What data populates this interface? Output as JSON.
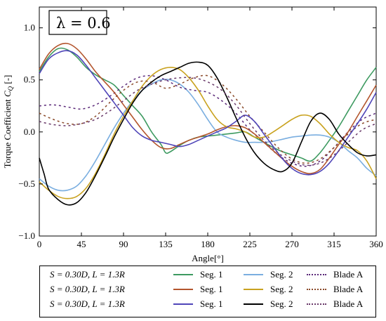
{
  "chart_data": {
    "type": "line",
    "annotation": "λ = 0.6",
    "xlabel": "Angle[°]",
    "ylabel": "Torque Coefficient C_Q [-]",
    "ylabel_parts": {
      "prefix": "Torque Coefficient ",
      "symbol": "C",
      "subscript": "Q",
      "suffix": " [-]"
    },
    "xlim": [
      0,
      360
    ],
    "ylim": [
      -1.0,
      1.2
    ],
    "xticks": [
      0,
      45,
      90,
      135,
      180,
      225,
      270,
      315,
      360
    ],
    "yticks": [
      -1.0,
      -0.5,
      0.0,
      0.5,
      1.0
    ],
    "ytick_labels": [
      "−1.0",
      "−0.5",
      "0.0",
      "0.5",
      "1.0"
    ],
    "grid": false,
    "legend_position": "bottom",
    "series": [
      {
        "name": "Seg. 1",
        "color": "#3d9a60",
        "dash": "solid",
        "x": [
          0,
          10,
          20,
          30,
          40,
          50,
          60,
          70,
          80,
          90,
          100,
          110,
          120,
          130,
          135,
          140,
          150,
          160,
          170,
          180,
          190,
          200,
          210,
          220,
          230,
          240,
          250,
          260,
          270,
          280,
          290,
          300,
          310,
          320,
          330,
          340,
          350,
          360
        ],
        "y": [
          0.58,
          0.72,
          0.8,
          0.79,
          0.72,
          0.62,
          0.55,
          0.5,
          0.45,
          0.35,
          0.25,
          0.15,
          0.0,
          -0.12,
          -0.2,
          -0.19,
          -0.13,
          -0.08,
          -0.05,
          -0.04,
          -0.03,
          -0.02,
          -0.01,
          0.0,
          -0.05,
          -0.1,
          -0.15,
          -0.19,
          -0.22,
          -0.25,
          -0.28,
          -0.2,
          -0.08,
          0.05,
          0.2,
          0.35,
          0.5,
          0.62
        ]
      },
      {
        "name": "Seg. 2",
        "color": "#7aaee0",
        "dash": "solid",
        "x": [
          0,
          10,
          20,
          30,
          40,
          50,
          60,
          70,
          80,
          90,
          100,
          110,
          120,
          130,
          140,
          150,
          160,
          170,
          180,
          190,
          200,
          210,
          220,
          230,
          240,
          250,
          260,
          270,
          280,
          290,
          300,
          310,
          320,
          330,
          340,
          350,
          360
        ],
        "y": [
          -0.45,
          -0.52,
          -0.56,
          -0.56,
          -0.52,
          -0.42,
          -0.28,
          -0.12,
          0.04,
          0.18,
          0.3,
          0.4,
          0.46,
          0.5,
          0.5,
          0.46,
          0.38,
          0.26,
          0.12,
          0.0,
          -0.05,
          -0.08,
          -0.1,
          -0.1,
          -0.1,
          -0.09,
          -0.07,
          -0.05,
          -0.04,
          -0.03,
          -0.03,
          -0.05,
          -0.1,
          -0.18,
          -0.25,
          -0.35,
          -0.42
        ]
      },
      {
        "name": "Blade A",
        "color": "#5c2a7a",
        "dash": "dotted",
        "x": [
          0,
          15,
          30,
          45,
          60,
          75,
          90,
          105,
          120,
          135,
          150,
          165,
          180,
          195,
          210,
          225,
          240,
          255,
          270,
          285,
          300,
          315,
          330,
          345,
          360
        ],
        "y": [
          0.25,
          0.26,
          0.24,
          0.22,
          0.26,
          0.34,
          0.44,
          0.52,
          0.54,
          0.5,
          0.43,
          0.4,
          0.38,
          0.3,
          0.18,
          0.02,
          -0.1,
          -0.22,
          -0.3,
          -0.33,
          -0.28,
          -0.15,
          0.0,
          0.12,
          0.18
        ]
      },
      {
        "name": "Seg. 1",
        "color": "#b3552d",
        "dash": "solid",
        "x": [
          0,
          10,
          20,
          30,
          40,
          50,
          60,
          70,
          80,
          90,
          100,
          110,
          120,
          130,
          140,
          150,
          160,
          170,
          180,
          190,
          200,
          210,
          220,
          230,
          240,
          250,
          260,
          270,
          280,
          290,
          300,
          310,
          320,
          330,
          340,
          350,
          360
        ],
        "y": [
          0.6,
          0.75,
          0.83,
          0.85,
          0.8,
          0.7,
          0.58,
          0.48,
          0.38,
          0.26,
          0.14,
          0.02,
          -0.08,
          -0.15,
          -0.16,
          -0.12,
          -0.08,
          -0.05,
          -0.02,
          0.02,
          0.05,
          0.06,
          0.04,
          -0.02,
          -0.1,
          -0.18,
          -0.26,
          -0.33,
          -0.38,
          -0.4,
          -0.36,
          -0.25,
          -0.12,
          0.0,
          0.15,
          0.3,
          0.45
        ]
      },
      {
        "name": "Seg. 2",
        "color": "#c9a21f",
        "dash": "solid",
        "x": [
          0,
          10,
          20,
          30,
          40,
          50,
          60,
          70,
          80,
          90,
          100,
          110,
          120,
          130,
          140,
          150,
          160,
          170,
          180,
          190,
          200,
          210,
          220,
          230,
          240,
          250,
          260,
          270,
          280,
          290,
          300,
          310,
          320,
          330,
          340,
          350,
          360
        ],
        "y": [
          -0.48,
          -0.56,
          -0.62,
          -0.64,
          -0.62,
          -0.54,
          -0.4,
          -0.22,
          -0.02,
          0.15,
          0.3,
          0.44,
          0.54,
          0.6,
          0.62,
          0.6,
          0.52,
          0.4,
          0.25,
          0.12,
          0.05,
          0.03,
          0.0,
          -0.05,
          -0.05,
          0.0,
          0.06,
          0.12,
          0.16,
          0.15,
          0.08,
          -0.02,
          -0.1,
          -0.15,
          -0.18,
          -0.28,
          -0.45
        ]
      },
      {
        "name": "Blade A",
        "color": "#8a4a2a",
        "dash": "dotted",
        "x": [
          0,
          15,
          30,
          45,
          60,
          75,
          90,
          105,
          120,
          135,
          150,
          165,
          180,
          195,
          210,
          225,
          240,
          255,
          270,
          285,
          300,
          315,
          330,
          345,
          360
        ],
        "y": [
          0.18,
          0.12,
          0.08,
          0.08,
          0.15,
          0.28,
          0.4,
          0.48,
          0.48,
          0.42,
          0.46,
          0.52,
          0.54,
          0.46,
          0.32,
          0.15,
          0.0,
          -0.15,
          -0.26,
          -0.3,
          -0.26,
          -0.15,
          -0.02,
          0.08,
          0.12
        ]
      },
      {
        "name": "Seg. 1",
        "color": "#4f45b8",
        "dash": "solid",
        "x": [
          0,
          10,
          20,
          30,
          40,
          50,
          60,
          70,
          80,
          90,
          100,
          110,
          120,
          130,
          140,
          150,
          160,
          170,
          180,
          190,
          200,
          210,
          220,
          230,
          240,
          250,
          260,
          270,
          280,
          290,
          300,
          310,
          320,
          330,
          340,
          350,
          360
        ],
        "y": [
          0.56,
          0.7,
          0.76,
          0.78,
          0.74,
          0.64,
          0.52,
          0.4,
          0.28,
          0.16,
          0.04,
          -0.04,
          -0.08,
          -0.1,
          -0.12,
          -0.14,
          -0.12,
          -0.08,
          -0.04,
          0.0,
          0.04,
          0.1,
          0.16,
          0.1,
          -0.02,
          -0.14,
          -0.26,
          -0.35,
          -0.4,
          -0.41,
          -0.38,
          -0.3,
          -0.18,
          -0.05,
          0.08,
          0.22,
          0.38
        ]
      },
      {
        "name": "Seg. 2",
        "color": "#000000",
        "dash": "solid",
        "x": [
          0,
          5,
          10,
          20,
          30,
          40,
          50,
          60,
          70,
          80,
          90,
          100,
          110,
          120,
          130,
          140,
          150,
          160,
          170,
          180,
          190,
          200,
          210,
          220,
          230,
          240,
          250,
          260,
          270,
          280,
          290,
          300,
          310,
          320,
          330,
          340,
          350,
          360
        ],
        "y": [
          -0.25,
          -0.4,
          -0.55,
          -0.65,
          -0.7,
          -0.68,
          -0.58,
          -0.42,
          -0.24,
          -0.05,
          0.12,
          0.28,
          0.4,
          0.48,
          0.54,
          0.58,
          0.62,
          0.66,
          0.67,
          0.64,
          0.52,
          0.34,
          0.14,
          -0.05,
          -0.2,
          -0.3,
          -0.36,
          -0.38,
          -0.3,
          -0.1,
          0.1,
          0.18,
          0.12,
          -0.02,
          -0.12,
          -0.2,
          -0.23,
          -0.22
        ]
      },
      {
        "name": "Blade A",
        "color": "#6a3a6a",
        "dash": "dotted",
        "x": [
          0,
          15,
          30,
          45,
          60,
          75,
          90,
          105,
          120,
          135,
          150,
          165,
          180,
          195,
          210,
          225,
          240,
          255,
          270,
          285,
          300,
          315,
          330,
          345,
          360
        ],
        "y": [
          0.1,
          0.07,
          0.06,
          0.08,
          0.12,
          0.2,
          0.3,
          0.4,
          0.46,
          0.5,
          0.52,
          0.52,
          0.48,
          0.4,
          0.26,
          0.08,
          -0.08,
          -0.2,
          -0.28,
          -0.32,
          -0.3,
          -0.22,
          -0.1,
          0.02,
          0.08
        ]
      }
    ]
  },
  "legend": {
    "conditions": [
      "S = 0.30D, L = 1.3R",
      "S = 0.30D, L = 1.3R",
      "S = 0.30D, L = 1.3R"
    ],
    "rows": [
      [
        {
          "label": "Seg. 1",
          "color": "#3d9a60",
          "dash": "solid"
        },
        {
          "label": "Seg. 2",
          "color": "#7aaee0",
          "dash": "solid"
        },
        {
          "label": "Blade A",
          "color": "#5c2a7a",
          "dash": "dotted"
        }
      ],
      [
        {
          "label": "Seg. 1",
          "color": "#b3552d",
          "dash": "solid"
        },
        {
          "label": "Seg. 2",
          "color": "#c9a21f",
          "dash": "solid"
        },
        {
          "label": "Blade A",
          "color": "#8a4a2a",
          "dash": "dotted"
        }
      ],
      [
        {
          "label": "Seg. 1",
          "color": "#4f45b8",
          "dash": "solid"
        },
        {
          "label": "Seg. 2",
          "color": "#000000",
          "dash": "solid"
        },
        {
          "label": "Blade A",
          "color": "#6a3a6a",
          "dash": "dotted"
        }
      ]
    ]
  }
}
